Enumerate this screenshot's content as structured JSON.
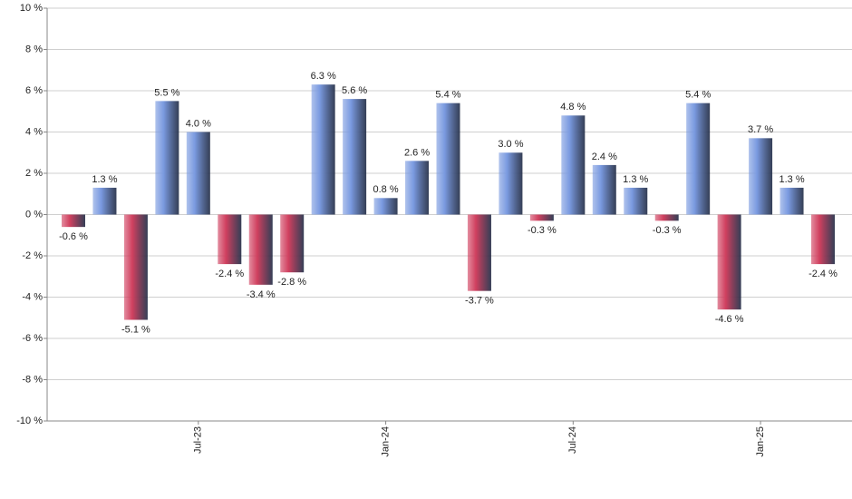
{
  "chart_data": {
    "type": "bar",
    "categories": [
      null,
      null,
      null,
      null,
      "Jul-23",
      null,
      null,
      null,
      null,
      null,
      "Jan-24",
      null,
      null,
      null,
      null,
      null,
      "Jul-24",
      null,
      null,
      null,
      null,
      null,
      "Jan-25",
      null,
      null
    ],
    "values": [
      -0.6,
      1.3,
      -5.1,
      5.5,
      4.0,
      -2.4,
      -3.4,
      -2.8,
      6.3,
      5.6,
      0.8,
      2.6,
      5.4,
      -3.7,
      3.0,
      -0.3,
      4.8,
      2.4,
      1.3,
      -0.3,
      5.4,
      -4.6,
      3.7,
      1.3,
      -2.4
    ],
    "value_labels": [
      "-0.6 %",
      "1.3 %",
      "-5.1 %",
      "5.5 %",
      "4.0 %",
      "-2.4 %",
      "-3.4 %",
      "-2.8 %",
      "6.3 %",
      "5.6 %",
      "0.8 %",
      "2.6 %",
      "5.4 %",
      "-3.7 %",
      "3.0 %",
      "-0.3 %",
      "4.8 %",
      "2.4 %",
      "1.3 %",
      "-0.3 %",
      "5.4 %",
      "-4.6 %",
      "3.7 %",
      "1.3 %",
      "-2.4 %"
    ],
    "positive_color": "#7a9ae0",
    "negative_color": "#d0405f",
    "ylim": [
      -10,
      10
    ],
    "yticks": [
      {
        "value": -10,
        "label": "-10 %"
      },
      {
        "value": -8,
        "label": "-8 %"
      },
      {
        "value": -6,
        "label": "-6 %"
      },
      {
        "value": -4,
        "label": "-4 %"
      },
      {
        "value": -2,
        "label": "-2 %"
      },
      {
        "value": 0,
        "label": "0 %"
      },
      {
        "value": 2,
        "label": "2 %"
      },
      {
        "value": 4,
        "label": "4 %"
      },
      {
        "value": 6,
        "label": "6 %"
      },
      {
        "value": 8,
        "label": "8 %"
      },
      {
        "value": 10,
        "label": "10 %"
      }
    ],
    "grid": true
  }
}
